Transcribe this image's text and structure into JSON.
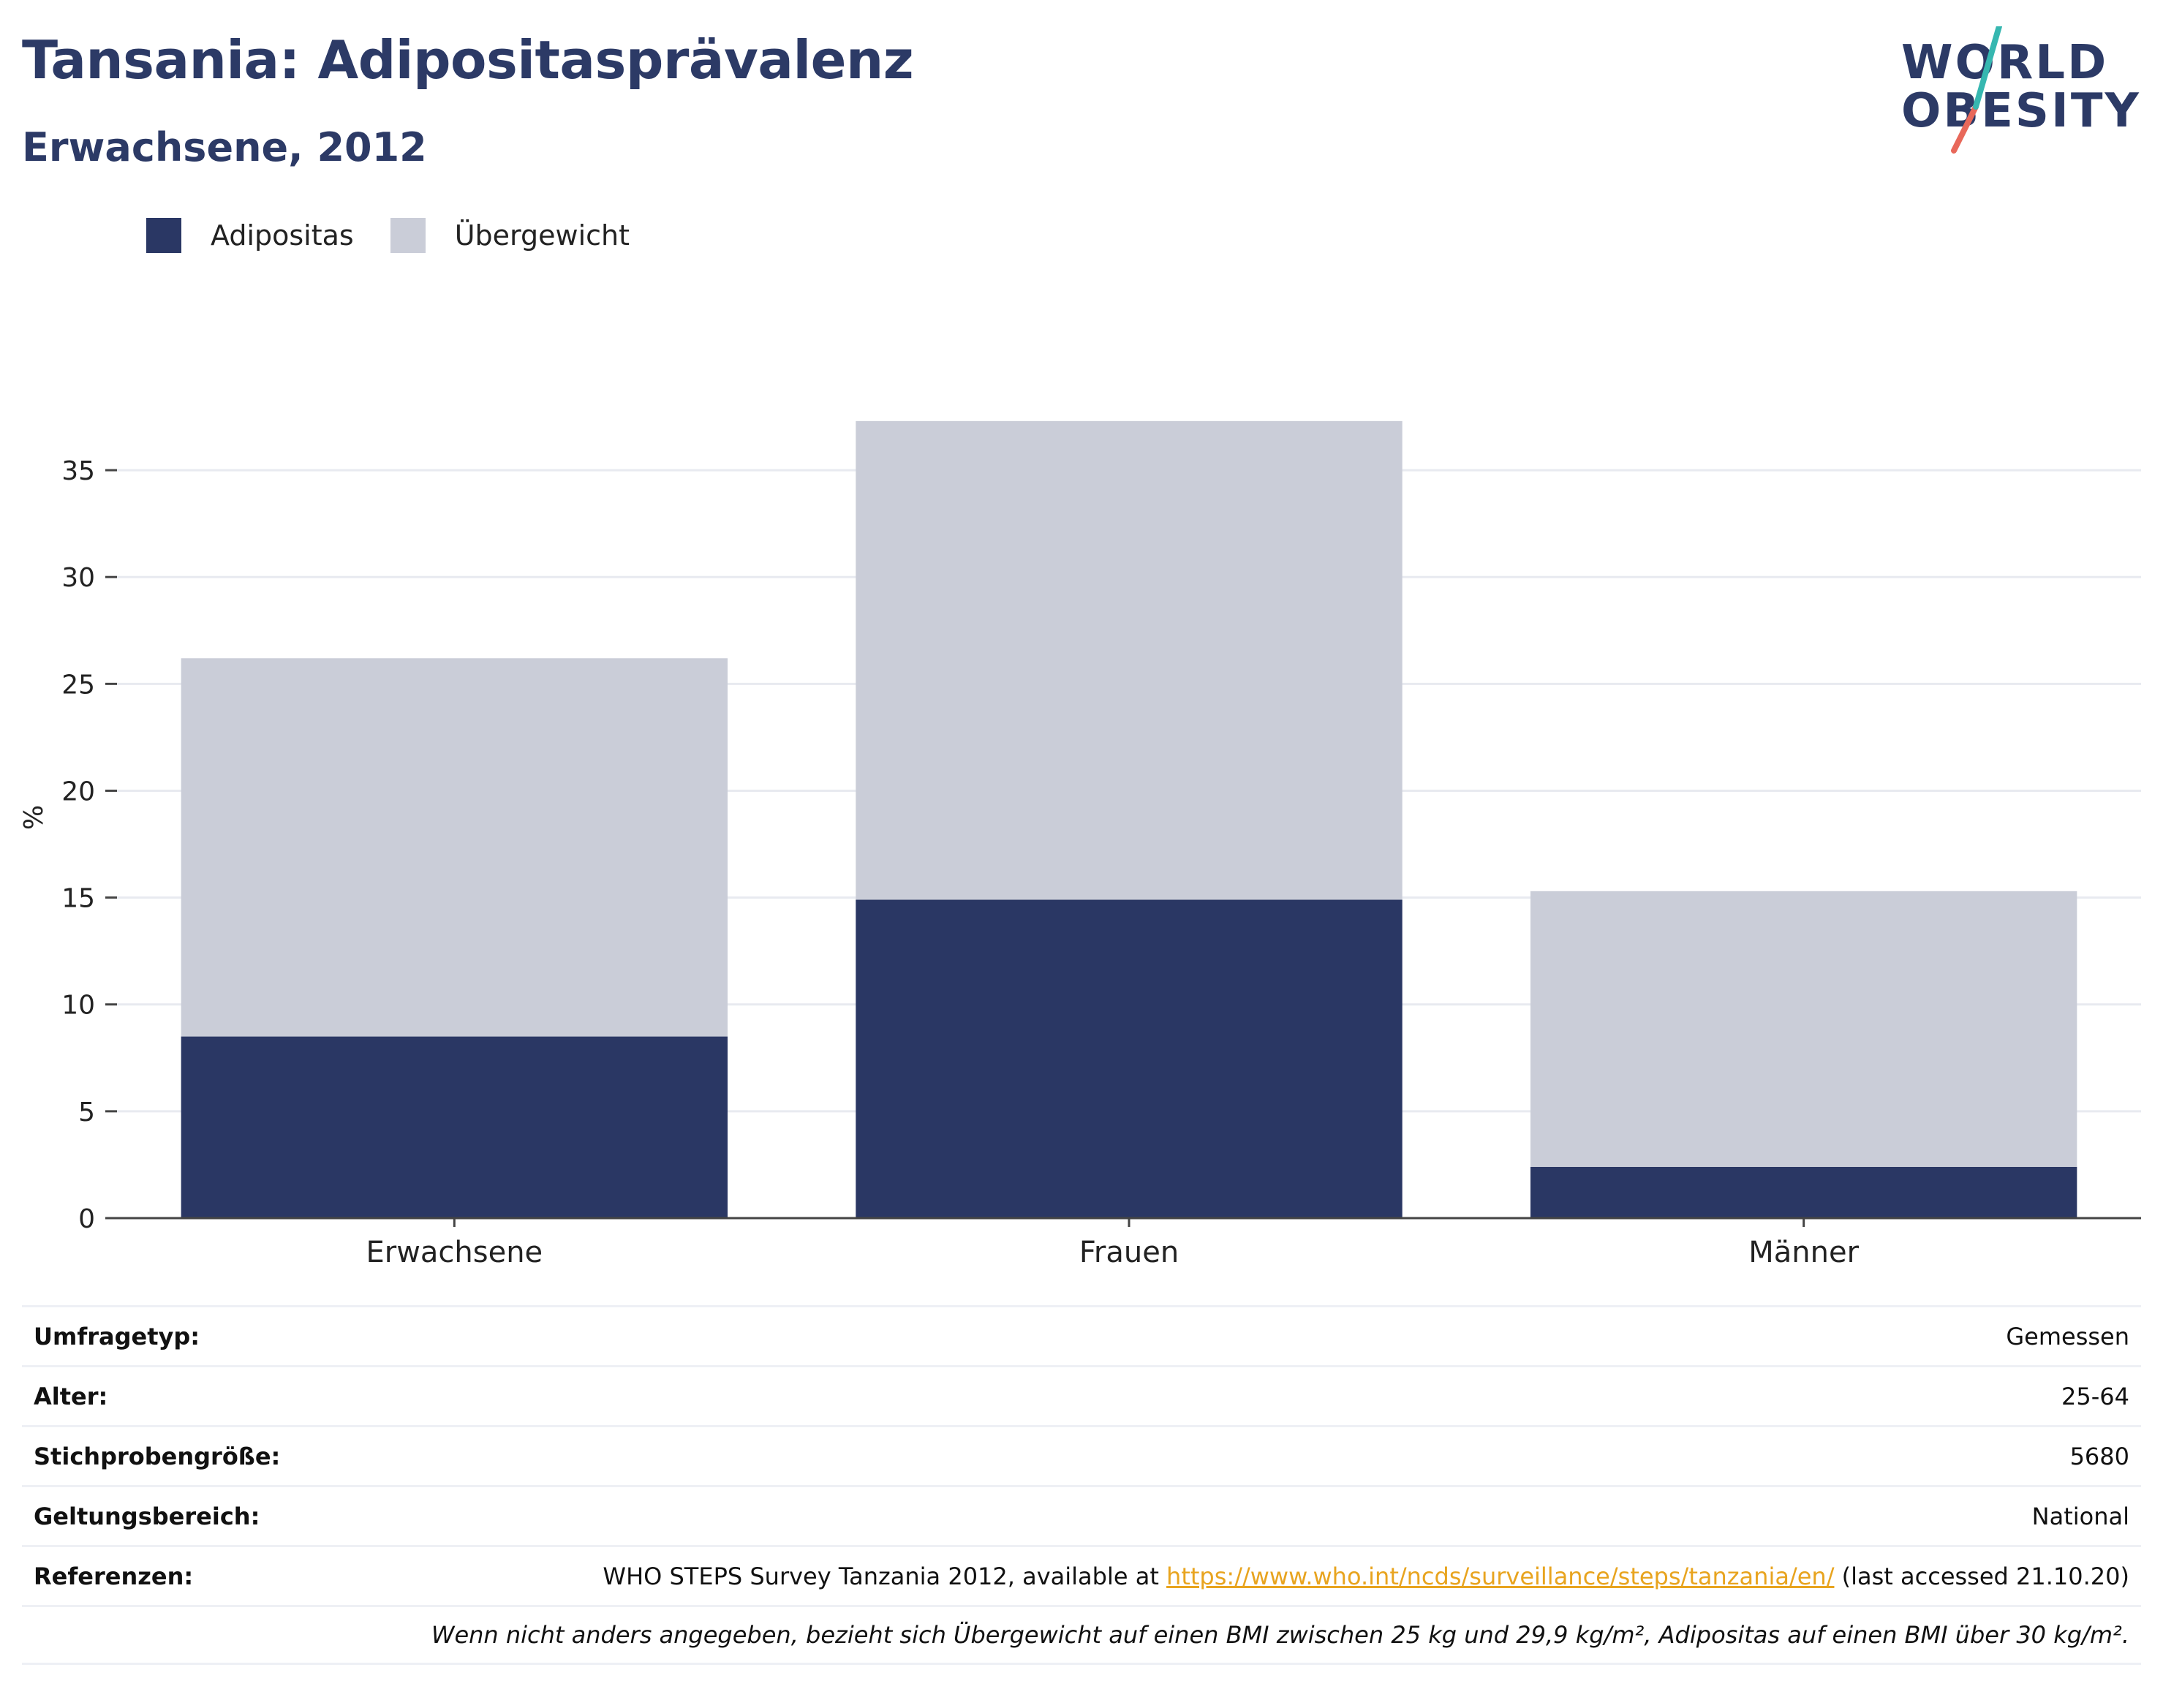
{
  "header": {
    "title": "Tansania: Adipositasprävalenz",
    "subtitle": "Erwachsene, 2012"
  },
  "logo": {
    "line1": "WORLD",
    "line2": "OBESITY"
  },
  "colors": {
    "obesity": "#2a3764",
    "overweight": "#cacdd8",
    "title": "#2c3a66",
    "link": "#e8a41f",
    "accent_teal": "#36b7b0",
    "accent_red": "#e8685a"
  },
  "legend": {
    "items": [
      "Adipositas",
      "Übergewicht"
    ]
  },
  "chart_data": {
    "type": "bar",
    "stacked": true,
    "categories": [
      "Erwachsene",
      "Frauen",
      "Männer"
    ],
    "series": [
      {
        "name": "Adipositas",
        "values": [
          8.5,
          14.9,
          2.4
        ]
      },
      {
        "name": "Übergewicht",
        "values": [
          17.7,
          22.4,
          12.9
        ]
      }
    ],
    "ylabel": "%",
    "ylim": [
      0,
      37.5
    ],
    "yticks": [
      0,
      5,
      10,
      15,
      20,
      25,
      30,
      35
    ],
    "grid": true,
    "legend_position": "top-left"
  },
  "info": {
    "rows": [
      {
        "key": "Umfragetyp:",
        "value": "Gemessen"
      },
      {
        "key": "Alter:",
        "value": "25-64"
      },
      {
        "key": "Stichprobengröße:",
        "value": "5680"
      },
      {
        "key": "Geltungsbereich:",
        "value": "National"
      }
    ],
    "references": {
      "key": "Referenzen:",
      "prefix": "WHO STEPS Survey Tanzania 2012, available at ",
      "link": "https://www.who.int/ncds/surveillance/steps/tanzania/en/",
      "suffix": " (last accessed 21.10.20)"
    },
    "note": "Wenn nicht anders angegeben, bezieht sich Übergewicht auf einen BMI zwischen 25 kg und 29,9 kg/m², Adipositas auf einen BMI über 30 kg/m²."
  }
}
